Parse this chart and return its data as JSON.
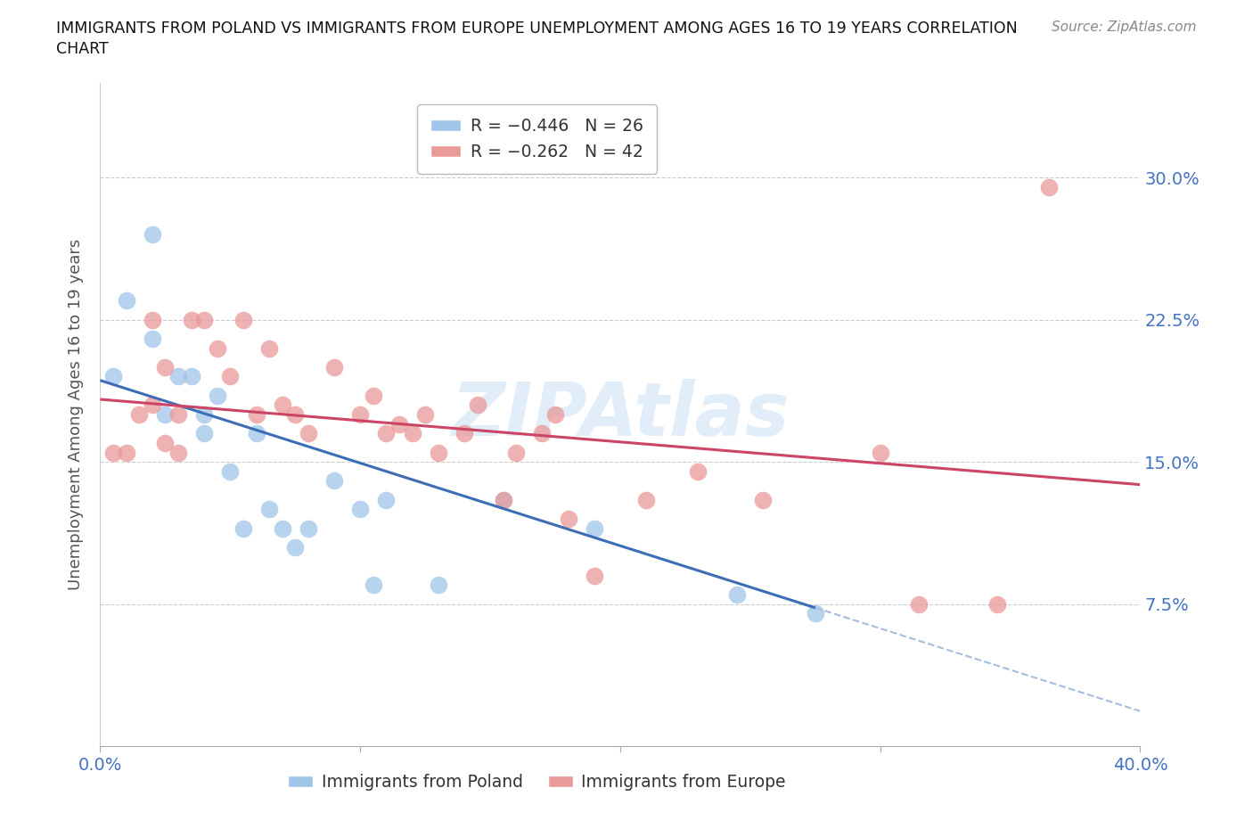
{
  "title_line1": "IMMIGRANTS FROM POLAND VS IMMIGRANTS FROM EUROPE UNEMPLOYMENT AMONG AGES 16 TO 19 YEARS CORRELATION",
  "title_line2": "CHART",
  "source": "Source: ZipAtlas.com",
  "ylabel": "Unemployment Among Ages 16 to 19 years",
  "xlabel_poland": "Immigrants from Poland",
  "xlabel_europe": "Immigrants from Europe",
  "xlim": [
    0.0,
    0.4
  ],
  "ylim": [
    0.0,
    0.35
  ],
  "yticks": [
    0.075,
    0.15,
    0.225,
    0.3
  ],
  "ytick_labels": [
    "7.5%",
    "15.0%",
    "22.5%",
    "30.0%"
  ],
  "xticks": [
    0.0,
    0.1,
    0.2,
    0.3,
    0.4
  ],
  "xtick_labels": [
    "0.0%",
    "",
    "",
    "",
    "40.0%"
  ],
  "legend_R_poland": "R = -0.446",
  "legend_N_poland": "N = 26",
  "legend_R_europe": "R = -0.262",
  "legend_N_europe": "N = 42",
  "color_poland": "#9fc5e8",
  "color_europe": "#ea9999",
  "color_poland_line": "#3d6eb5",
  "color_europe_line": "#cc4466",
  "color_axis_labels": "#4472c4",
  "watermark": "ZIPAtlas",
  "poland_x": [
    0.005,
    0.01,
    0.02,
    0.02,
    0.025,
    0.03,
    0.035,
    0.04,
    0.04,
    0.045,
    0.05,
    0.055,
    0.06,
    0.065,
    0.07,
    0.075,
    0.08,
    0.09,
    0.1,
    0.105,
    0.11,
    0.13,
    0.155,
    0.19,
    0.245,
    0.275
  ],
  "poland_y": [
    0.195,
    0.235,
    0.27,
    0.215,
    0.175,
    0.195,
    0.195,
    0.175,
    0.165,
    0.185,
    0.145,
    0.115,
    0.165,
    0.125,
    0.115,
    0.105,
    0.115,
    0.14,
    0.125,
    0.085,
    0.13,
    0.085,
    0.13,
    0.115,
    0.08,
    0.07
  ],
  "europe_x": [
    0.005,
    0.01,
    0.015,
    0.02,
    0.02,
    0.025,
    0.025,
    0.03,
    0.03,
    0.035,
    0.04,
    0.045,
    0.05,
    0.055,
    0.06,
    0.065,
    0.07,
    0.075,
    0.08,
    0.09,
    0.1,
    0.105,
    0.11,
    0.115,
    0.12,
    0.125,
    0.13,
    0.14,
    0.145,
    0.155,
    0.16,
    0.17,
    0.175,
    0.18,
    0.19,
    0.21,
    0.23,
    0.255,
    0.3,
    0.315,
    0.345,
    0.365
  ],
  "europe_y": [
    0.155,
    0.155,
    0.175,
    0.18,
    0.225,
    0.2,
    0.16,
    0.175,
    0.155,
    0.225,
    0.225,
    0.21,
    0.195,
    0.225,
    0.175,
    0.21,
    0.18,
    0.175,
    0.165,
    0.2,
    0.175,
    0.185,
    0.165,
    0.17,
    0.165,
    0.175,
    0.155,
    0.165,
    0.18,
    0.13,
    0.155,
    0.165,
    0.175,
    0.12,
    0.09,
    0.13,
    0.145,
    0.13,
    0.155,
    0.075,
    0.075,
    0.295
  ],
  "bg_color": "#ffffff",
  "grid_color": "#cccccc",
  "poland_line_x0": 0.0,
  "poland_line_y0": 0.193,
  "poland_line_x1": 0.275,
  "poland_line_y1": 0.073,
  "europe_line_x0": 0.0,
  "europe_line_y0": 0.183,
  "europe_line_x1": 0.4,
  "europe_line_y1": 0.138
}
